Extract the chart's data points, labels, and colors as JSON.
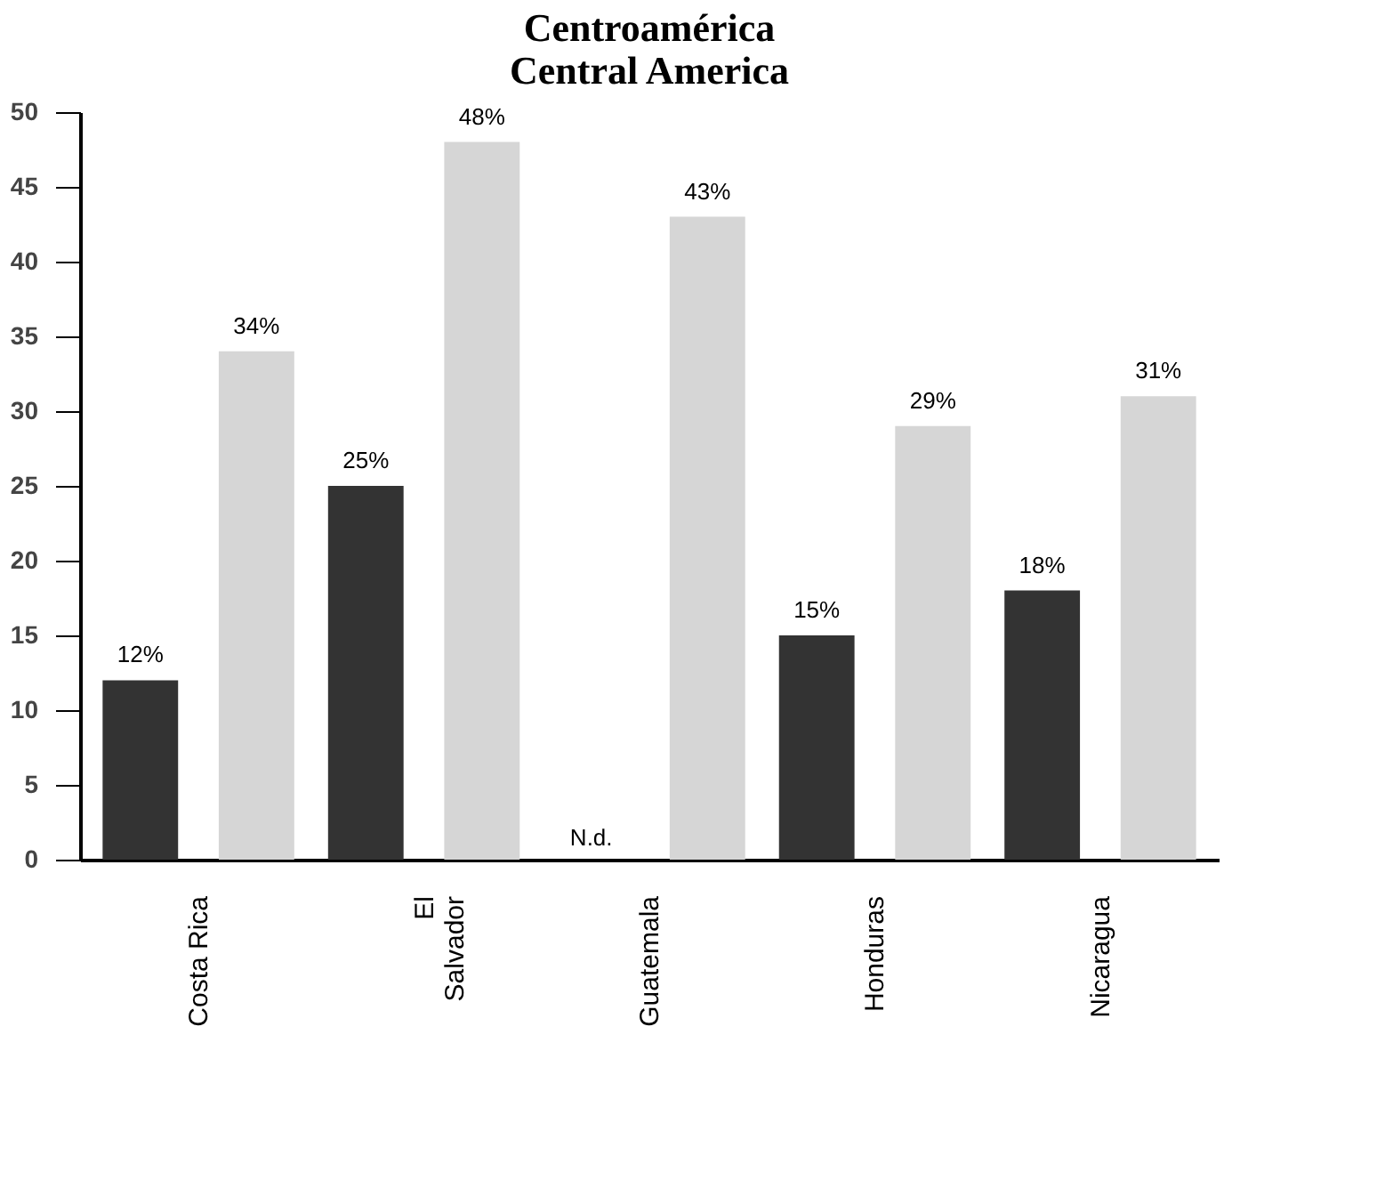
{
  "chart_data": {
    "type": "bar",
    "title": [
      "Centroamérica",
      "Central America"
    ],
    "categories": [
      "Costa Rica",
      "El\nSalvador",
      "Guatemala",
      "Honduras",
      "Nicaragua"
    ],
    "series": [
      {
        "color": "#333333",
        "values": [
          12,
          25,
          null,
          15,
          18
        ],
        "value_labels": [
          "12%",
          "25%",
          null,
          "15%",
          "18%"
        ]
      },
      {
        "color": "#d6d6d6",
        "values": [
          34,
          48,
          43,
          29,
          31
        ],
        "value_labels": [
          "34%",
          "48%",
          "43%",
          "29%",
          "31%"
        ]
      }
    ],
    "annotations": [
      "N.d."
    ],
    "ylim": [
      0,
      50
    ],
    "yticks": [
      0,
      5,
      10,
      15,
      20,
      25,
      30,
      35,
      40,
      45,
      50
    ],
    "grid": false,
    "legend": false
  }
}
